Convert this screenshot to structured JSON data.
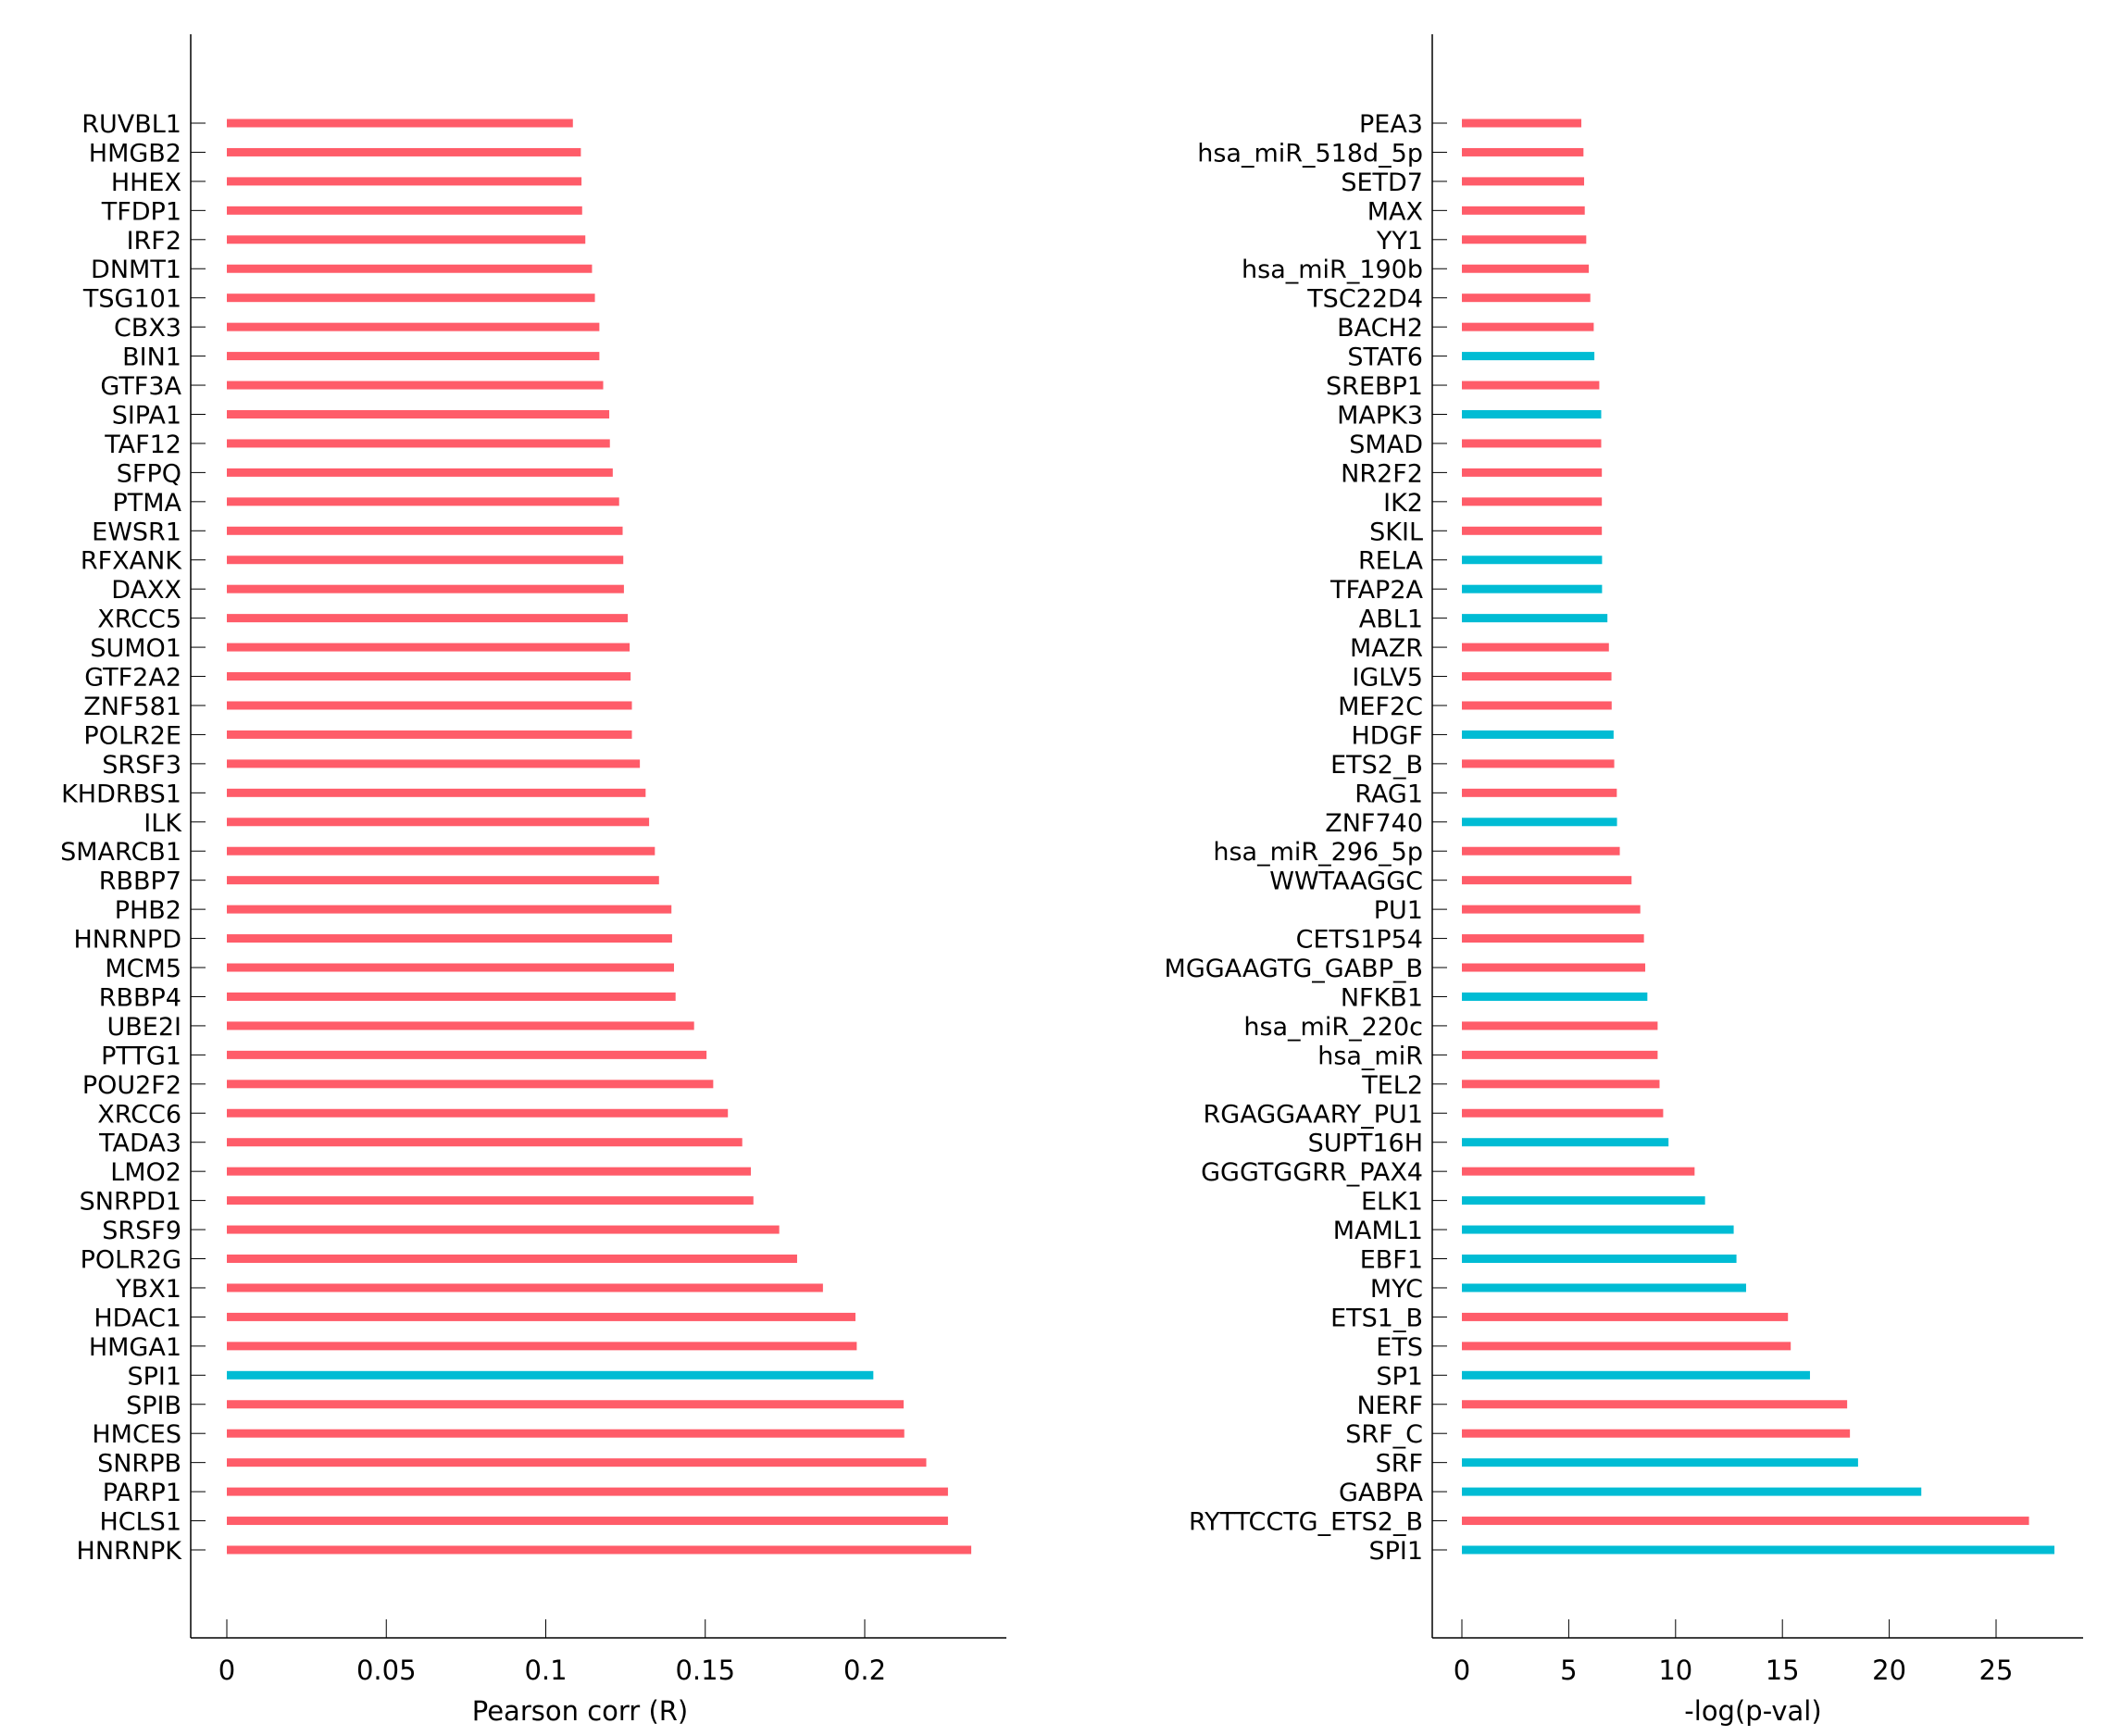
{
  "colors": {
    "positive": "#ff5c69",
    "highlight": "#00bcd4",
    "axis": "#000000"
  },
  "chart_data": [
    {
      "type": "bar",
      "orientation": "horizontal",
      "xlabel": "Pearson corr (R)",
      "xlim": [
        -0.012,
        0.245
      ],
      "xticks": [
        0,
        0.05,
        0.1,
        0.15,
        0.2
      ],
      "xtick_labels": [
        "0",
        "0.05",
        "0.1",
        "0.15",
        "0.2"
      ],
      "categories": [
        "RUVBL1",
        "HMGB2",
        "HHEX",
        "TFDP1",
        "IRF2",
        "DNMT1",
        "TSG101",
        "CBX3",
        "BIN1",
        "GTF3A",
        "SIPA1",
        "TAF12",
        "SFPQ",
        "PTMA",
        "EWSR1",
        "RFXANK",
        "DAXX",
        "XRCC5",
        "SUMO1",
        "GTF2A2",
        "ZNF581",
        "POLR2E",
        "SRSF3",
        "KHDRBS1",
        "ILK",
        "SMARCB1",
        "RBBP7",
        "PHB2",
        "HNRNPD",
        "MCM5",
        "RBBP4",
        "UBE2I",
        "PTTG1",
        "POU2F2",
        "XRCC6",
        "TADA3",
        "LMO2",
        "SNRPD1",
        "SRSF9",
        "POLR2G",
        "YBX1",
        "HDAC1",
        "HMGA1",
        "SPI1",
        "SPIB",
        "HMCES",
        "SNRPB",
        "PARP1",
        "HCLS1",
        "HNRNPK"
      ],
      "values": [
        0.1085,
        0.111,
        0.1112,
        0.1114,
        0.1124,
        0.1145,
        0.1154,
        0.1168,
        0.1168,
        0.118,
        0.1199,
        0.1201,
        0.121,
        0.123,
        0.1241,
        0.1243,
        0.1245,
        0.1257,
        0.1263,
        0.1266,
        0.127,
        0.127,
        0.1295,
        0.1313,
        0.1324,
        0.1342,
        0.1355,
        0.1394,
        0.1396,
        0.1402,
        0.1407,
        0.1465,
        0.1504,
        0.1525,
        0.1571,
        0.1616,
        0.1643,
        0.1651,
        0.1732,
        0.1788,
        0.1869,
        0.1971,
        0.1975,
        0.2027,
        0.2122,
        0.2124,
        0.2193,
        0.2261,
        0.2261,
        0.2334
      ],
      "highlighted": [
        "SPI1"
      ]
    },
    {
      "type": "bar",
      "orientation": "horizontal",
      "xlabel": "-log(p-val)",
      "xlim": [
        -1.4,
        29.8
      ],
      "xticks": [
        0,
        5,
        10,
        15,
        20,
        25
      ],
      "xtick_labels": [
        "0",
        "5",
        "10",
        "15",
        "20",
        "25"
      ],
      "categories": [
        "PEA3",
        "hsa_miR_518d_5p",
        "SETD7",
        "MAX",
        "YY1",
        "hsa_miR_190b",
        "TSC22D4",
        "BACH2",
        "STAT6",
        "SREBP1",
        "MAPK3",
        "SMAD",
        "NR2F2",
        "IK2",
        "SKIL",
        "RELA",
        "TFAP2A",
        "ABL1",
        "MAZR",
        "IGLV5",
        "MEF2C",
        "HDGF",
        "ETS2_B",
        "RAG1",
        "ZNF740",
        "hsa_miR_296_5p",
        "WWTAAGGC",
        "PU1",
        "CETS1P54",
        "MGGAAGTG_GABP_B",
        "NFKB1",
        "hsa_miR_220c",
        "hsa_miR",
        "TEL2",
        "RGAGGAARY_PU1",
        "SUPT16H",
        "GGGTGGRR_PAX4",
        "ELK1",
        "MAML1",
        "EBF1",
        "MYC",
        "ETS1_B",
        "ETS",
        "SP1",
        "NERF",
        "SRF_C",
        "SRF",
        "GABPA",
        "RYTTCCTG_ETS2_B",
        "SPI1"
      ],
      "values": [
        5.59,
        5.69,
        5.72,
        5.75,
        5.82,
        5.94,
        6.01,
        6.17,
        6.2,
        6.43,
        6.52,
        6.52,
        6.55,
        6.55,
        6.55,
        6.56,
        6.56,
        6.81,
        6.88,
        7.0,
        7.01,
        7.1,
        7.13,
        7.25,
        7.26,
        7.39,
        7.94,
        8.35,
        8.52,
        8.58,
        8.68,
        9.16,
        9.16,
        9.25,
        9.42,
        9.67,
        10.89,
        11.38,
        12.72,
        12.85,
        13.3,
        15.26,
        15.39,
        16.29,
        18.03,
        18.16,
        18.54,
        21.5,
        26.54,
        27.73
      ],
      "highlighted": [
        "STAT6",
        "MAPK3",
        "RELA",
        "TFAP2A",
        "ABL1",
        "HDGF",
        "ZNF740",
        "NFKB1",
        "SUPT16H",
        "ELK1",
        "MAML1",
        "EBF1",
        "MYC",
        "SP1",
        "SRF",
        "GABPA",
        "SPI1"
      ]
    }
  ]
}
